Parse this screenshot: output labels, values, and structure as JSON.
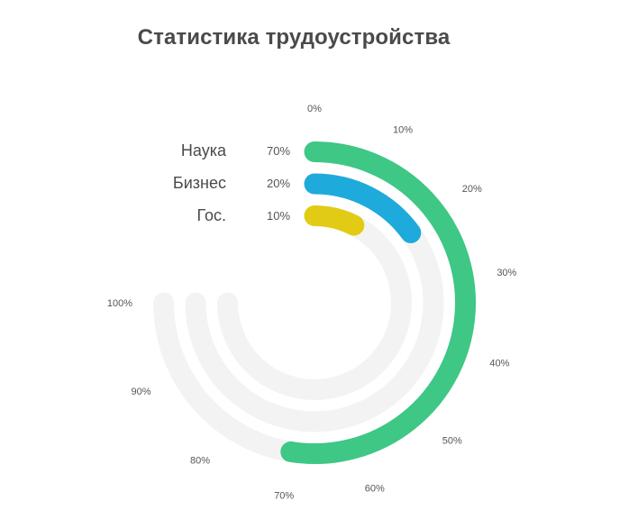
{
  "title": "Статистика трудоустройства",
  "chart_data": {
    "type": "radial-bar",
    "title": "Статистика трудоустройства",
    "categories": [
      "Наука",
      "Бизнес",
      "Гос."
    ],
    "values": [
      70,
      20,
      10
    ],
    "value_labels": [
      "70%",
      "20%",
      "10%"
    ],
    "colors": [
      "#3EC785",
      "#1EAADB",
      "#E2CB14"
    ],
    "track_color": "#F3F3F3",
    "range": [
      0,
      100
    ],
    "sweep_degrees": 270,
    "start": "top",
    "direction": "clockwise",
    "tick_labels": [
      "0%",
      "10%",
      "20%",
      "30%",
      "40%",
      "50%",
      "60%",
      "70%",
      "80%",
      "90%",
      "100%"
    ],
    "legend_position": "left of ring starts"
  },
  "legend": [
    {
      "name": "Наука",
      "value": "70%"
    },
    {
      "name": "Бизнес",
      "value": "20%"
    },
    {
      "name": "Гос.",
      "value": "10%"
    }
  ]
}
